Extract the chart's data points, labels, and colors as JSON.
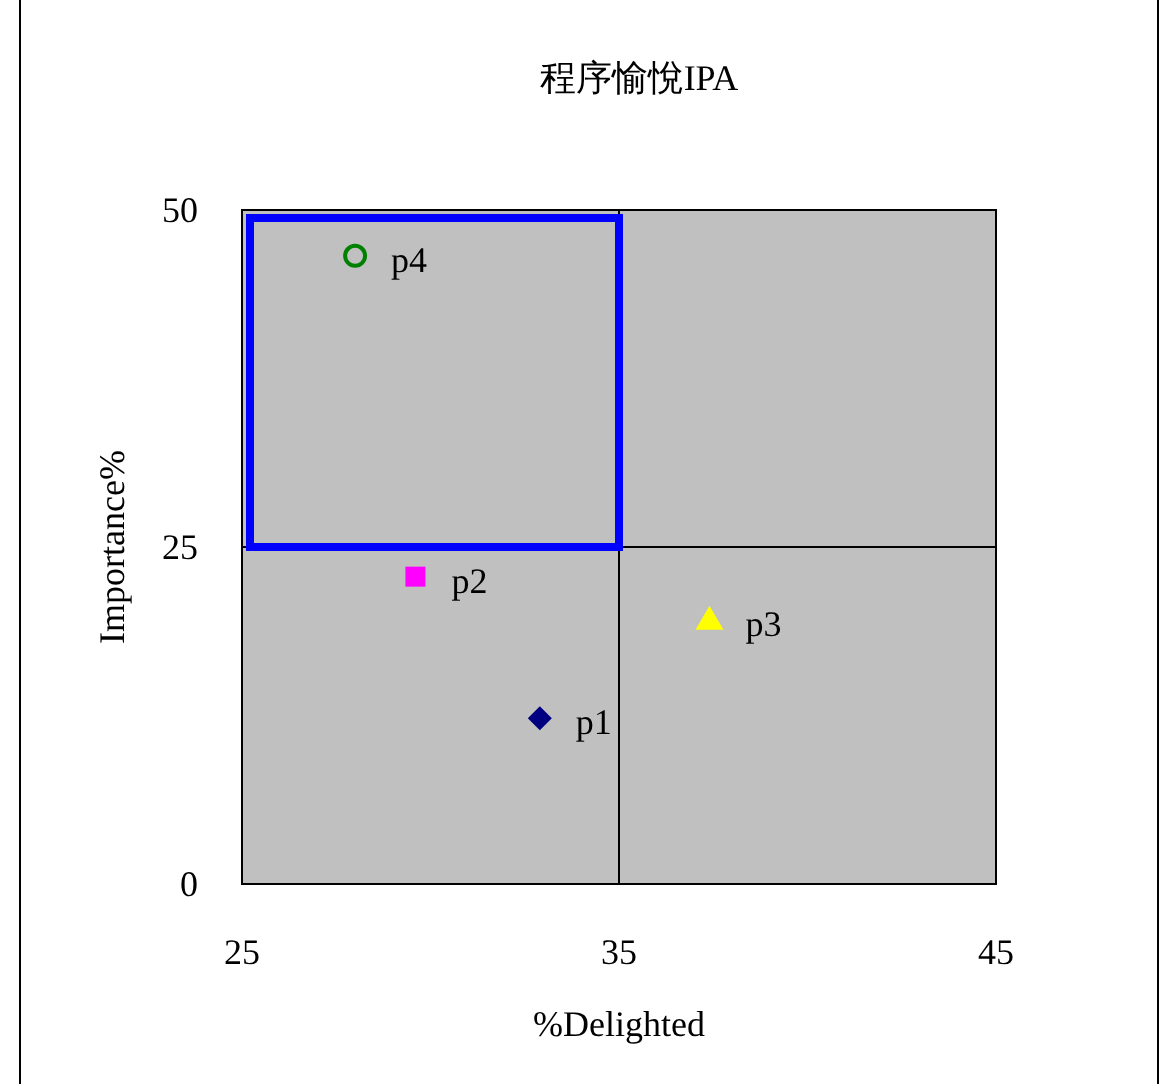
{
  "chart_data": {
    "type": "scatter",
    "title": "程序愉悅IPA",
    "xlabel": "%Delighted",
    "ylabel": "Importance%",
    "xlim": [
      25,
      45
    ],
    "xticks": [
      25,
      35,
      45
    ],
    "ylim": [
      0,
      50
    ],
    "yticks": [
      0,
      25,
      50
    ],
    "series": [
      {
        "name": "p1",
        "color": "#000080",
        "marker": "diamond",
        "x": [
          32.9
        ],
        "values": [
          12.3
        ]
      },
      {
        "name": "p2",
        "color": "#ff00ff",
        "marker": "square",
        "x": [
          29.6
        ],
        "values": [
          22.8
        ]
      },
      {
        "name": "p3",
        "color": "#ffff00",
        "marker": "triangle",
        "x": [
          37.4
        ],
        "values": [
          19.6
        ]
      },
      {
        "name": "p4",
        "color": "#008000",
        "marker": "circle",
        "x": [
          28
        ],
        "values": [
          46.6
        ]
      }
    ],
    "ref_lines": [
      {
        "axis": "x",
        "value": 35,
        "color": "#000000"
      },
      {
        "axis": "y",
        "value": 25,
        "color": "#000000"
      }
    ]
  }
}
